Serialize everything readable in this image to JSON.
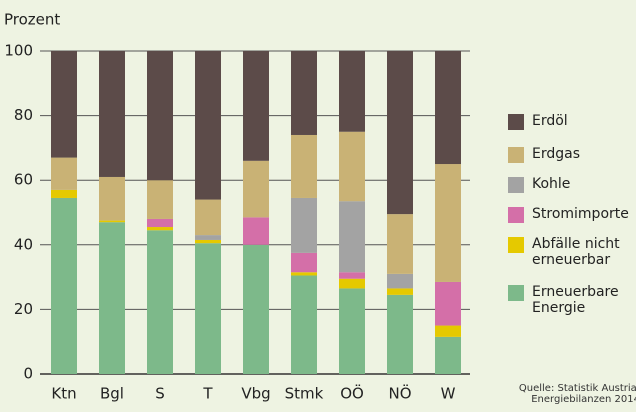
{
  "chart_data": {
    "type": "stacked-bar",
    "y_label": "Prozent",
    "categories": [
      "Ktn",
      "Bgl",
      "S",
      "T",
      "Vbg",
      "Stmk",
      "OÖ",
      "NÖ",
      "W"
    ],
    "series": [
      {
        "name": "Erneuerbare Energie",
        "color": "#7db98a",
        "values": [
          54.5,
          47,
          44.5,
          40.5,
          40,
          30.5,
          26.5,
          24.5,
          11.5
        ]
      },
      {
        "name": "Abfälle nicht erneuerbar",
        "color": "#e5c900",
        "values": [
          2.5,
          0.5,
          1,
          1,
          0,
          1,
          3,
          2,
          3.5
        ]
      },
      {
        "name": "Stromimporte",
        "color": "#d46fa8",
        "values": [
          0,
          0,
          2.5,
          0,
          8.5,
          6,
          2,
          0,
          13.5
        ]
      },
      {
        "name": "Kohle",
        "color": "#a3a3a3",
        "values": [
          0,
          0,
          0,
          1.5,
          0,
          17,
          22,
          4.5,
          0
        ]
      },
      {
        "name": "Erdgas",
        "color": "#c9b275",
        "values": [
          10,
          13.5,
          12,
          11,
          17.5,
          19.5,
          21.5,
          18.5,
          36.5
        ]
      },
      {
        "name": "Erdöl",
        "color": "#5c4b49",
        "values": [
          33,
          39,
          40,
          46,
          34,
          26,
          25,
          50.5,
          35
        ]
      }
    ],
    "ylim": [
      0,
      100
    ],
    "yticks": [
      0,
      20,
      40,
      60,
      80,
      100
    ],
    "grid": true,
    "source": [
      "Quelle: Statistik Austria,",
      "Energiebilanzen 2014"
    ]
  }
}
